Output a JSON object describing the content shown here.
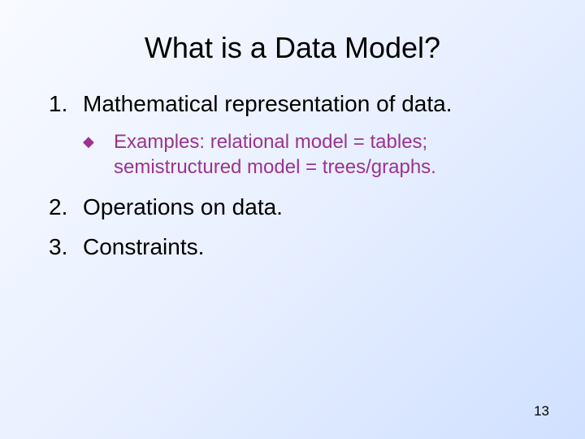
{
  "slide": {
    "title": "What is a Data Model?",
    "page_number": "13",
    "background_gradient": {
      "start": "#f8faff",
      "mid": "#e8f0ff",
      "end": "#d0e0ff"
    },
    "title_fontsize": 36,
    "body_fontsize": 28,
    "sub_fontsize": 24,
    "sub_color": "#9b3391",
    "text_color": "#000000",
    "items": [
      {
        "number": "1.",
        "text": "Mathematical representation of data.",
        "sub": {
          "bullet": "◆",
          "text": "Examples: relational model = tables; semistructured model = trees/graphs."
        }
      },
      {
        "number": "2.",
        "text": "Operations on data.",
        "sub": null
      },
      {
        "number": "3.",
        "text": "Constraints.",
        "sub": null
      }
    ]
  }
}
